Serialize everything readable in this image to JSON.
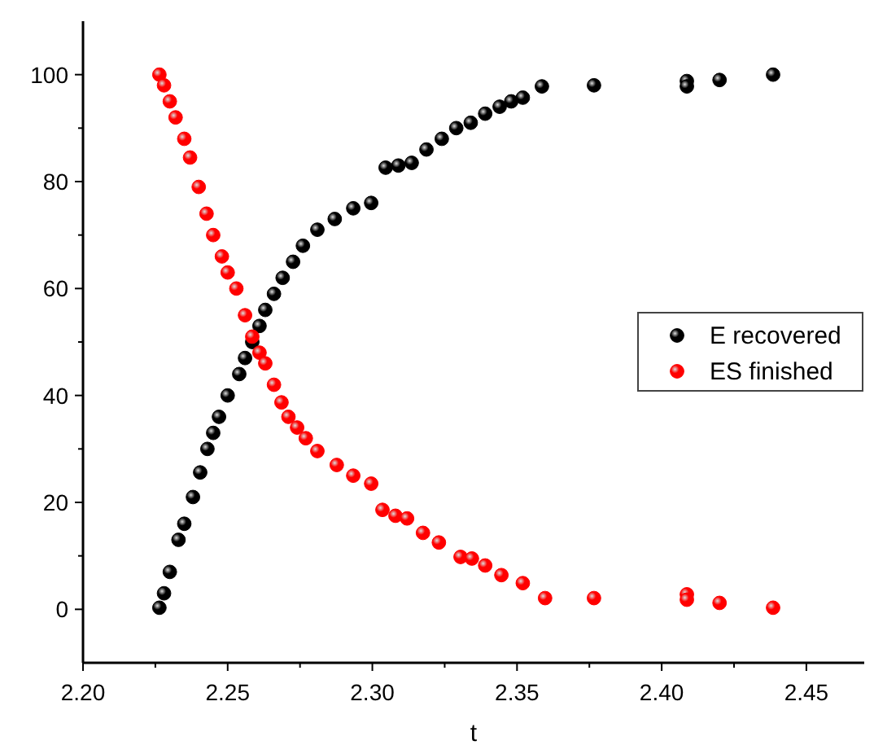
{
  "chart_data": {
    "type": "scatter",
    "xlabel": "t",
    "xlim": [
      2.2,
      2.47
    ],
    "ylim": [
      -10,
      110
    ],
    "xticks": [
      {
        "value": 2.2,
        "label": "2.20"
      },
      {
        "value": 2.225,
        "label": null
      },
      2.25,
      {
        "value": 2.275,
        "label": null
      },
      {
        "value": 2.3,
        "label": "2.30"
      },
      {
        "value": 2.325,
        "label": null
      },
      2.35,
      {
        "value": 2.375,
        "label": null
      },
      {
        "value": 2.4,
        "label": "2.40"
      },
      {
        "value": 2.425,
        "label": null
      },
      2.45
    ],
    "yticks": [
      0,
      {
        "value": 10,
        "label": null
      },
      20,
      {
        "value": 30,
        "label": null
      },
      40,
      {
        "value": 50,
        "label": null
      },
      60,
      {
        "value": 70,
        "label": null
      },
      80,
      {
        "value": 90,
        "label": null
      },
      100
    ],
    "grid": false,
    "legend": "right",
    "marker": "circle",
    "series": [
      {
        "name": "E recovered",
        "color": "#000000",
        "x": [
          2.2264,
          2.228,
          2.23,
          2.233,
          2.235,
          2.238,
          2.2405,
          2.243,
          2.245,
          2.247,
          2.25,
          2.254,
          2.256,
          2.2585,
          2.261,
          2.263,
          2.266,
          2.269,
          2.2726,
          2.276,
          2.281,
          2.287,
          2.2934,
          2.2996,
          2.3046,
          2.309,
          2.3136,
          2.3187,
          2.324,
          2.329,
          2.334,
          2.339,
          2.344,
          2.348,
          2.352,
          2.3586,
          2.3766,
          2.4087,
          2.4087,
          2.42,
          2.4385
        ],
        "values": [
          0.3,
          3,
          7,
          13,
          16,
          21,
          25.6,
          30,
          33,
          36,
          40,
          44,
          47,
          50,
          53,
          56,
          59,
          62,
          65,
          68,
          71,
          73,
          75,
          76,
          82.6,
          83,
          83.5,
          86,
          88,
          90,
          91,
          92.7,
          94,
          95,
          95.7,
          97.8,
          98,
          98.8,
          97.8,
          99,
          100
        ]
      },
      {
        "name": "ES finished",
        "color": "#ff0000",
        "x": [
          2.2264,
          2.228,
          2.23,
          2.232,
          2.235,
          2.237,
          2.24,
          2.2427,
          2.245,
          2.248,
          2.25,
          2.253,
          2.256,
          2.2585,
          2.261,
          2.263,
          2.266,
          2.2686,
          2.271,
          2.274,
          2.277,
          2.281,
          2.2877,
          2.2934,
          2.2996,
          2.3035,
          2.308,
          2.312,
          2.3175,
          2.323,
          2.3305,
          2.3344,
          2.339,
          2.3446,
          2.352,
          2.3597,
          2.3766,
          2.4087,
          2.4087,
          2.42,
          2.4385
        ],
        "values": [
          100,
          98,
          95,
          92,
          88,
          84.5,
          79,
          74,
          70,
          66,
          63,
          60,
          55,
          51,
          48,
          46,
          42,
          38.7,
          36,
          34,
          32,
          29.6,
          27,
          25,
          23.5,
          18.6,
          17.5,
          17,
          14.3,
          12.5,
          9.8,
          9.5,
          8.2,
          6.4,
          4.9,
          2.1,
          2.1,
          2.8,
          1.8,
          1.2,
          0.3
        ]
      }
    ]
  }
}
